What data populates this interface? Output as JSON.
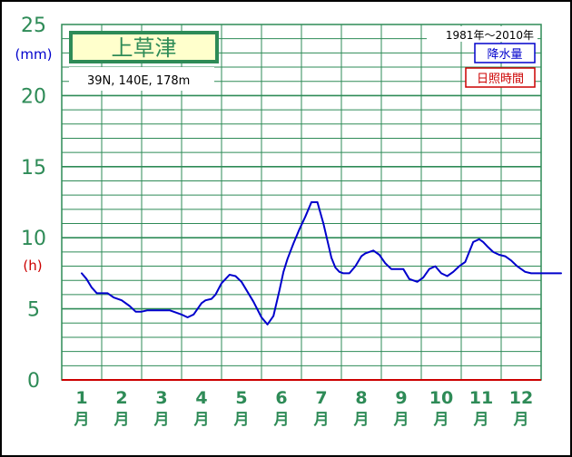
{
  "colors": {
    "frame": "#2e8b57",
    "grid": "#2e8b57",
    "tick_label": "#2e8b57",
    "precip": "#0000cc",
    "sunshine": "#cc0000",
    "station_box_bg": "#ffffcc",
    "background": "#ffffff"
  },
  "chart_data": {
    "type": "line",
    "station": {
      "name": "上草津",
      "location": "39N,  140E,  178m"
    },
    "period": "1981年〜2010年",
    "legend": [
      "降水量",
      "日照時間"
    ],
    "y_left_unit": "(mm)",
    "y_right_unit": "(h)",
    "ylim": [
      0,
      25
    ],
    "yticks": [
      "0",
      "5",
      "10",
      "15",
      "20",
      "25"
    ],
    "categories": [
      "1",
      "2",
      "3",
      "4",
      "5",
      "6",
      "7",
      "8",
      "9",
      "10",
      "11",
      "12"
    ],
    "month_suffix": "月",
    "series": [
      {
        "name": "降水量",
        "x": [
          0.5,
          0.62,
          0.75,
          0.88,
          1.0,
          1.15,
          1.3,
          1.5,
          1.7,
          1.85,
          2.0,
          2.15,
          2.3,
          2.5,
          2.7,
          2.9,
          3.0,
          3.15,
          3.3,
          3.5,
          3.6,
          3.75,
          3.85,
          4.0,
          4.2,
          4.35,
          4.5,
          4.65,
          4.8,
          5.0,
          5.15,
          5.3,
          5.45,
          5.55,
          5.65,
          5.8,
          5.95,
          6.1,
          6.25,
          6.4,
          6.55,
          6.65,
          6.75,
          6.85,
          6.95,
          7.05,
          7.2,
          7.35,
          7.5,
          7.6,
          7.8,
          7.95,
          8.1,
          8.25,
          8.4,
          8.55,
          8.7,
          8.9,
          9.05,
          9.2,
          9.35,
          9.5,
          9.65,
          9.8,
          9.95,
          10.1,
          10.3,
          10.45,
          10.55,
          10.65,
          10.8,
          10.95,
          11.1,
          11.25,
          11.4,
          11.6,
          11.75,
          11.9,
          12.1,
          12.3,
          12.5
        ],
        "y": [
          7.5,
          7.1,
          6.5,
          6.1,
          6.1,
          6.1,
          5.8,
          5.6,
          5.2,
          4.8,
          4.8,
          4.9,
          4.9,
          4.9,
          4.9,
          4.7,
          4.6,
          4.4,
          4.6,
          5.4,
          5.6,
          5.7,
          6.0,
          6.8,
          7.4,
          7.3,
          6.9,
          6.2,
          5.5,
          4.4,
          3.9,
          4.5,
          6.3,
          7.6,
          8.5,
          9.6,
          10.6,
          11.5,
          12.5,
          12.5,
          11.0,
          9.8,
          8.6,
          7.9,
          7.6,
          7.5,
          7.5,
          8.0,
          8.7,
          8.9,
          9.1,
          8.8,
          8.2,
          7.8,
          7.8,
          7.8,
          7.1,
          6.9,
          7.2,
          7.8,
          8.0,
          7.5,
          7.3,
          7.6,
          8.0,
          8.3,
          9.7,
          9.9,
          9.7,
          9.4,
          9.0,
          8.8,
          8.7,
          8.4,
          8.0,
          7.6,
          7.5,
          7.5,
          7.5,
          7.5,
          7.5
        ]
      }
    ],
    "grid": true,
    "legend_position": "top-right"
  }
}
